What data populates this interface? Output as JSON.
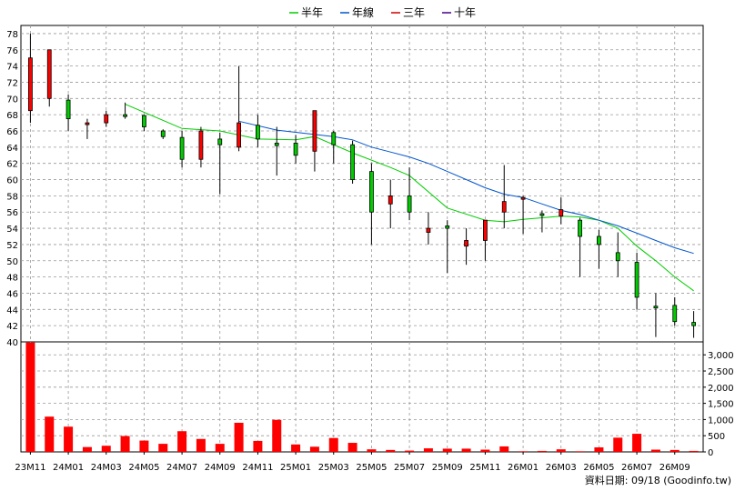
{
  "chart_data": {
    "type": "candlestick",
    "legend": [
      {
        "label": "半年",
        "color": "#00cc00"
      },
      {
        "label": "年線",
        "color": "#0055cc"
      },
      {
        "label": "三年",
        "color": "#cc0000"
      },
      {
        "label": "十年",
        "color": "#440088"
      }
    ],
    "price_axis": {
      "ylim": [
        40,
        79
      ],
      "ticks": [
        40,
        42,
        44,
        46,
        48,
        50,
        52,
        54,
        56,
        58,
        60,
        62,
        64,
        66,
        68,
        70,
        72,
        74,
        76,
        78
      ]
    },
    "volume_axis": {
      "ylim": [
        0,
        3400
      ],
      "ticks": [
        "0",
        "500",
        "1,000",
        "1,500",
        "2,000",
        "2,500",
        "3,000"
      ],
      "tick_values": [
        0,
        500,
        1000,
        1500,
        2000,
        2500,
        3000
      ]
    },
    "x_labels": [
      "23M11",
      "24M01",
      "24M03",
      "24M05",
      "24M07",
      "24M09",
      "24M11",
      "25M01",
      "25M03",
      "25M05",
      "25M07",
      "25M09",
      "25M11",
      "26M01",
      "26M03",
      "26M05",
      "26M07",
      "26M09"
    ],
    "candles": [
      {
        "o": 68.5,
        "h": 78.0,
        "l": 67.0,
        "c": 75.0
      },
      {
        "o": 70.0,
        "h": 76.0,
        "l": 69.0,
        "c": 76.0
      },
      {
        "o": 69.8,
        "h": 70.5,
        "l": 66.0,
        "c": 67.5
      },
      {
        "o": 67.0,
        "h": 67.5,
        "l": 65.0,
        "c": 67.0
      },
      {
        "o": 67.0,
        "h": 68.5,
        "l": 66.5,
        "c": 68.0
      },
      {
        "o": 68.0,
        "h": 69.5,
        "l": 67.5,
        "c": 67.8
      },
      {
        "o": 67.9,
        "h": 68.0,
        "l": 66.0,
        "c": 66.5
      },
      {
        "o": 66.0,
        "h": 66.2,
        "l": 65.0,
        "c": 65.3
      },
      {
        "o": 65.2,
        "h": 66.0,
        "l": 61.5,
        "c": 62.5
      },
      {
        "o": 62.5,
        "h": 66.5,
        "l": 61.5,
        "c": 66.0
      },
      {
        "o": 65.0,
        "h": 65.8,
        "l": 58.2,
        "c": 64.3
      },
      {
        "o": 64.0,
        "h": 74.0,
        "l": 63.5,
        "c": 67.0
      },
      {
        "o": 66.7,
        "h": 68.0,
        "l": 64.0,
        "c": 65.0
      },
      {
        "o": 64.5,
        "h": 66.5,
        "l": 60.5,
        "c": 64.2
      },
      {
        "o": 64.5,
        "h": 65.5,
        "l": 62.0,
        "c": 63.0
      },
      {
        "o": 63.5,
        "h": 68.5,
        "l": 61.0,
        "c": 68.5
      },
      {
        "o": 65.8,
        "h": 66.0,
        "l": 62.0,
        "c": 64.3
      },
      {
        "o": 64.3,
        "h": 64.8,
        "l": 59.5,
        "c": 60.0
      },
      {
        "o": 61.0,
        "h": 62.0,
        "l": 52.0,
        "c": 56.0
      },
      {
        "o": 57.0,
        "h": 60.0,
        "l": 54.0,
        "c": 58.0
      },
      {
        "o": 58.0,
        "h": 61.5,
        "l": 55.0,
        "c": 56.0
      },
      {
        "o": 53.5,
        "h": 56.0,
        "l": 52.0,
        "c": 54.0
      },
      {
        "o": 54.3,
        "h": 55.0,
        "l": 48.5,
        "c": 54.0
      },
      {
        "o": 51.8,
        "h": 54.0,
        "l": 49.5,
        "c": 52.5
      },
      {
        "o": 52.5,
        "h": 55.0,
        "l": 50.0,
        "c": 55.0
      },
      {
        "o": 56.0,
        "h": 61.8,
        "l": 54.0,
        "c": 57.3
      },
      {
        "o": 57.8,
        "h": 58.0,
        "l": 53.3,
        "c": 57.8
      },
      {
        "o": 55.8,
        "h": 56.2,
        "l": 53.5,
        "c": 55.6
      },
      {
        "o": 55.5,
        "h": 57.8,
        "l": 54.5,
        "c": 56.3
      },
      {
        "o": 55.0,
        "h": 55.3,
        "l": 48.0,
        "c": 53.0
      },
      {
        "o": 53.0,
        "h": 53.8,
        "l": 49.0,
        "c": 52.0
      },
      {
        "o": 51.0,
        "h": 53.5,
        "l": 48.0,
        "c": 50.0
      },
      {
        "o": 49.8,
        "h": 51.0,
        "l": 44.0,
        "c": 45.5
      },
      {
        "o": 44.4,
        "h": 46.0,
        "l": 40.6,
        "c": 44.3
      },
      {
        "o": 44.5,
        "h": 45.5,
        "l": 42.0,
        "c": 42.5
      },
      {
        "o": 42.4,
        "h": 43.8,
        "l": 40.5,
        "c": 42.0
      }
    ],
    "ma_half_year": [
      [
        5,
        69.3
      ],
      [
        8,
        66.3
      ],
      [
        10,
        66.0
      ],
      [
        12,
        65.0
      ],
      [
        14,
        64.9
      ],
      [
        15,
        65.3
      ],
      [
        17,
        63.3
      ],
      [
        19,
        61.5
      ],
      [
        20,
        60.5
      ],
      [
        22,
        56.5
      ],
      [
        24,
        55.0
      ],
      [
        25,
        54.8
      ],
      [
        26,
        55.1
      ],
      [
        28,
        55.5
      ],
      [
        29,
        55.4
      ],
      [
        30,
        55.0
      ],
      [
        31,
        54.0
      ],
      [
        32,
        51.8
      ],
      [
        33,
        50.0
      ],
      [
        34,
        48.0
      ],
      [
        35,
        46.3
      ]
    ],
    "ma_year": [
      [
        11,
        67.2
      ],
      [
        13,
        66.1
      ],
      [
        16,
        65.3
      ],
      [
        17,
        64.9
      ],
      [
        18,
        64.0
      ],
      [
        19,
        63.4
      ],
      [
        20,
        62.8
      ],
      [
        21,
        62.0
      ],
      [
        22,
        61.0
      ],
      [
        23,
        60.0
      ],
      [
        24,
        59.0
      ],
      [
        25,
        58.2
      ],
      [
        26,
        57.8
      ],
      [
        27,
        57.0
      ],
      [
        28,
        56.2
      ],
      [
        29,
        55.7
      ],
      [
        30,
        55.0
      ],
      [
        31,
        54.3
      ],
      [
        32,
        53.4
      ],
      [
        33,
        52.5
      ],
      [
        34,
        51.6
      ],
      [
        35,
        50.9
      ]
    ],
    "volumes": [
      3380,
      1090,
      780,
      150,
      190,
      490,
      350,
      250,
      640,
      400,
      250,
      900,
      340,
      990,
      230,
      160,
      430,
      280,
      80,
      60,
      40,
      110,
      100,
      100,
      70,
      170,
      20,
      30,
      80,
      20,
      140,
      440,
      560,
      70,
      60,
      30
    ]
  },
  "footer": {
    "text": "資料日期: 09/18 (Goodinfo.tw)"
  }
}
